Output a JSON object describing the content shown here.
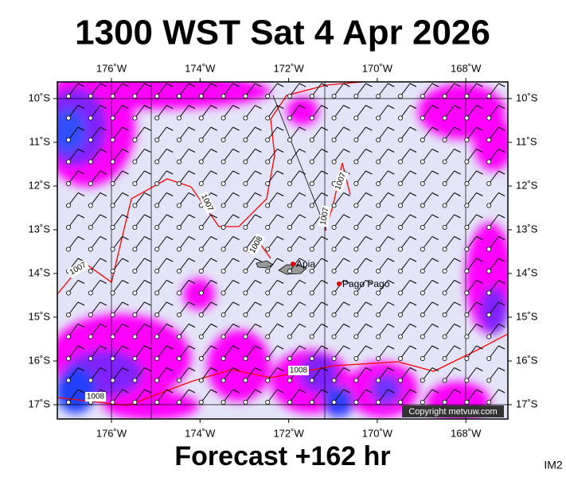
{
  "header": {
    "title": "1300 WST Sat 4 Apr 2026"
  },
  "footer": {
    "forecast": "Forecast +162 hr",
    "corner": "IM2"
  },
  "map": {
    "longitude_labels": [
      "176˚W",
      "174˚W",
      "172˚W",
      "170˚W",
      "168˚W"
    ],
    "latitude_labels": [
      "10˚S",
      "11˚S",
      "12˚S",
      "13˚S",
      "14˚S",
      "15˚S",
      "16˚S",
      "17˚S"
    ],
    "places": [
      "Apia",
      "Pago Pago"
    ],
    "isobar_labels": [
      "1007",
      "1007",
      "1008",
      "1007",
      "1007",
      "1008",
      "1008"
    ],
    "copyright": "Copyright metvuw.com"
  }
}
